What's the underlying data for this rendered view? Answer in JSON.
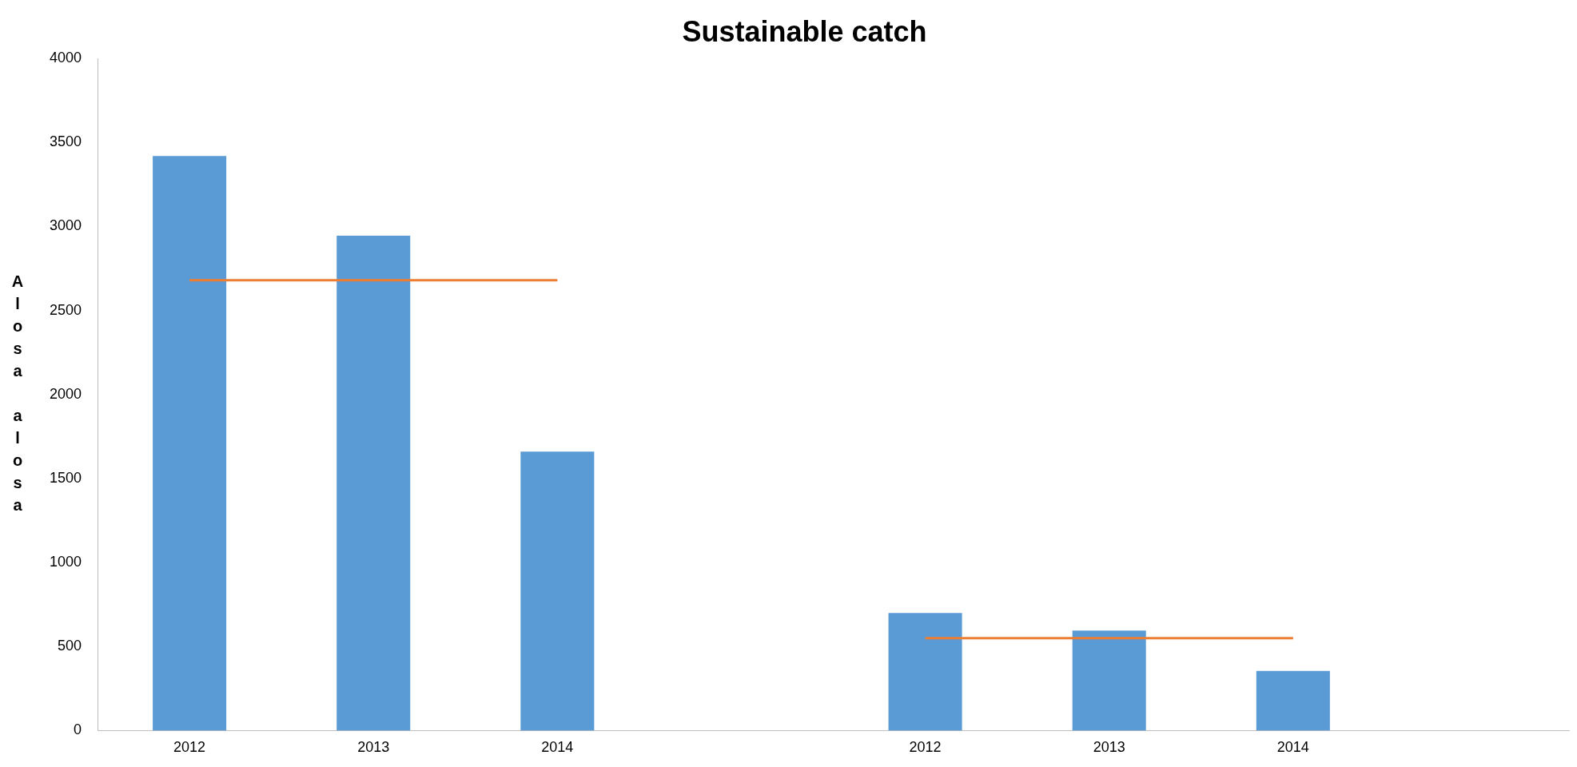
{
  "chart_data": {
    "type": "bar",
    "title": "Sustainable catch",
    "ylabel": "Alosa alosa",
    "categories": [
      "2012",
      "2013",
      "2014",
      null,
      "2012",
      "2013",
      "2014",
      null
    ],
    "series": [
      {
        "color": "#5b9bd5",
        "values": [
          3420,
          2945,
          1660,
          null,
          700,
          595,
          355,
          null
        ]
      },
      {
        "type": "line",
        "color": "#ed7d31",
        "values": [
          2680,
          2680,
          2680,
          null,
          null,
          null,
          null,
          null
        ]
      },
      {
        "type": "line",
        "color": "#ed7d31",
        "values": [
          null,
          null,
          null,
          null,
          550,
          550,
          550,
          null
        ]
      }
    ],
    "ylim": [
      0,
      4000
    ],
    "yticks": [
      0,
      500,
      1000,
      1500,
      2000,
      2500,
      3000,
      3500,
      4000
    ],
    "grid": false,
    "legend": false,
    "marker": "none",
    "line_style": "solid"
  }
}
